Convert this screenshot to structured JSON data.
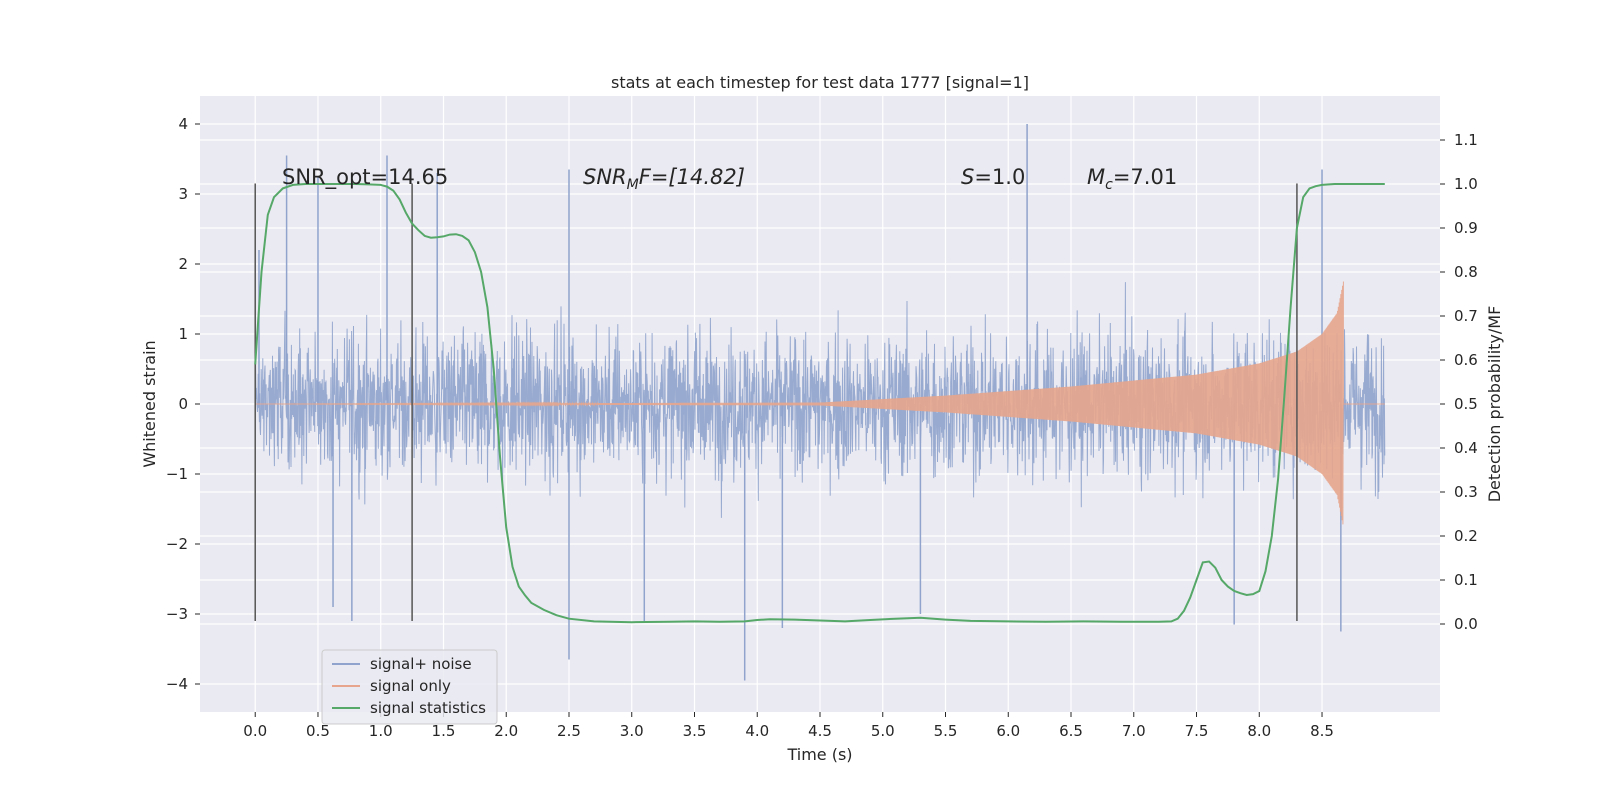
{
  "chart_data": {
    "type": "line",
    "title": "stats at each timestep for test data 1777 [signal=1]",
    "xlabel": "Time (s)",
    "ylabel": "Whitened strain",
    "ylabel_right": "Detection probability/MF",
    "xlim": [
      -0.44,
      9.44
    ],
    "ylim": [
      -4.4,
      4.4
    ],
    "ylim_right": [
      -0.2,
      1.2
    ],
    "x_ticks": [
      0.0,
      0.5,
      1.0,
      1.5,
      2.0,
      2.5,
      3.0,
      3.5,
      4.0,
      4.5,
      5.0,
      5.5,
      6.0,
      6.5,
      7.0,
      7.5,
      8.0,
      8.5
    ],
    "x_tick_labels": [
      "0.0",
      "0.5",
      "1.0",
      "1.5",
      "2.0",
      "2.5",
      "3.0",
      "3.5",
      "4.0",
      "4.5",
      "5.0",
      "5.5",
      "6.0",
      "6.5",
      "7.0",
      "7.5",
      "8.0",
      "8.5"
    ],
    "y_ticks": [
      4,
      3,
      2,
      1,
      0,
      -1,
      -2,
      -3,
      -4
    ],
    "y_tick_labels": [
      "4",
      "3",
      "2",
      "1",
      "0",
      "−1",
      "−2",
      "−3",
      "−4"
    ],
    "y_ticks_right": [
      1.1,
      1.0,
      0.9,
      0.8,
      0.7,
      0.6,
      0.5,
      0.4,
      0.3,
      0.2,
      0.1,
      0.0
    ],
    "y_tick_labels_right": [
      "1.1",
      "1.0",
      "0.9",
      "0.8",
      "0.7",
      "0.6",
      "0.5",
      "0.4",
      "0.3",
      "0.2",
      "0.1",
      "0.0"
    ],
    "grid": true,
    "legend_position": "lower-left",
    "series": [
      {
        "name": "signal+ noise",
        "axis": "left",
        "color": "#8fa3cc",
        "description_range_x": [
          0.0,
          9.0
        ],
        "peaks": [
          {
            "x": 0.03,
            "y": 2.2
          },
          {
            "x": 0.25,
            "y": 3.55
          },
          {
            "x": 0.5,
            "y": 3.25
          },
          {
            "x": 0.62,
            "y": -2.9
          },
          {
            "x": 0.77,
            "y": -3.1
          },
          {
            "x": 1.05,
            "y": 3.55
          },
          {
            "x": 1.45,
            "y": 3.3
          },
          {
            "x": 2.5,
            "y": 3.35
          },
          {
            "x": 2.5,
            "y": -3.65
          },
          {
            "x": 3.1,
            "y": -3.1
          },
          {
            "x": 3.9,
            "y": -3.95
          },
          {
            "x": 4.2,
            "y": -3.2
          },
          {
            "x": 5.3,
            "y": -3.0
          },
          {
            "x": 6.15,
            "y": 4.0
          },
          {
            "x": 7.8,
            "y": -3.15
          },
          {
            "x": 8.5,
            "y": 3.35
          },
          {
            "x": 8.65,
            "y": -3.25
          }
        ]
      },
      {
        "name": "signal only",
        "axis": "left",
        "color": "#e6a58c",
        "envelope": {
          "x": [
            0.0,
            4.5,
            5.5,
            6.5,
            7.5,
            8.0,
            8.3,
            8.5,
            8.62,
            8.67
          ],
          "amplitude": [
            0.0,
            0.02,
            0.12,
            0.25,
            0.42,
            0.58,
            0.75,
            1.0,
            1.3,
            1.75
          ]
        },
        "ends_at": 8.67
      },
      {
        "name": "signal statistics",
        "axis": "right",
        "color": "#55a868",
        "x": [
          0.0,
          0.05,
          0.1,
          0.15,
          0.22,
          0.3,
          0.4,
          0.5,
          0.6,
          0.7,
          0.8,
          0.9,
          1.0,
          1.05,
          1.1,
          1.15,
          1.2,
          1.25,
          1.3,
          1.35,
          1.4,
          1.45,
          1.5,
          1.55,
          1.6,
          1.65,
          1.7,
          1.75,
          1.8,
          1.85,
          1.9,
          1.95,
          2.0,
          2.05,
          2.1,
          2.15,
          2.2,
          2.3,
          2.4,
          2.5,
          2.7,
          3.0,
          3.3,
          3.5,
          3.7,
          3.9,
          4.0,
          4.1,
          4.3,
          4.5,
          4.7,
          4.9,
          5.1,
          5.3,
          5.5,
          5.7,
          6.0,
          6.3,
          6.6,
          6.9,
          7.1,
          7.2,
          7.3,
          7.35,
          7.4,
          7.45,
          7.5,
          7.55,
          7.6,
          7.65,
          7.7,
          7.75,
          7.8,
          7.85,
          7.9,
          7.95,
          8.0,
          8.05,
          8.1,
          8.15,
          8.2,
          8.25,
          8.3,
          8.35,
          8.4,
          8.45,
          8.5,
          8.6,
          8.8,
          9.0
        ],
        "values": [
          0.59,
          0.8,
          0.93,
          0.97,
          0.99,
          0.998,
          1.0,
          1.0,
          1.0,
          1.0,
          1.0,
          0.999,
          0.998,
          0.994,
          0.985,
          0.965,
          0.935,
          0.91,
          0.895,
          0.882,
          0.878,
          0.879,
          0.881,
          0.885,
          0.886,
          0.882,
          0.872,
          0.845,
          0.8,
          0.72,
          0.58,
          0.38,
          0.22,
          0.13,
          0.085,
          0.065,
          0.048,
          0.032,
          0.02,
          0.012,
          0.006,
          0.004,
          0.005,
          0.006,
          0.005,
          0.006,
          0.009,
          0.011,
          0.01,
          0.008,
          0.006,
          0.009,
          0.012,
          0.014,
          0.01,
          0.007,
          0.006,
          0.005,
          0.006,
          0.005,
          0.005,
          0.005,
          0.006,
          0.012,
          0.03,
          0.06,
          0.1,
          0.14,
          0.142,
          0.128,
          0.1,
          0.085,
          0.075,
          0.07,
          0.066,
          0.068,
          0.075,
          0.12,
          0.2,
          0.33,
          0.52,
          0.72,
          0.9,
          0.97,
          0.99,
          0.995,
          0.998,
          1.0,
          1.0,
          1.0
        ]
      }
    ],
    "vertical_markers": [
      0.0,
      1.25,
      8.3
    ],
    "annotations": [
      {
        "x": 0.2,
        "y": 3.2,
        "text": "SNR_opt=14.65"
      },
      {
        "x": 2.6,
        "y": 3.2,
        "text": "SNR_MF=[14.82]"
      },
      {
        "x": 5.6,
        "y": 3.2,
        "text": "S=1.0"
      },
      {
        "x": 6.6,
        "y": 3.2,
        "text": "M_c=7.01"
      }
    ]
  },
  "annotation_text": {
    "snr_opt": "SNR_opt=14.65",
    "snr_mf_main": "SNR",
    "snr_mf_sub": "M",
    "snr_mf_rest": "F=[14.82]",
    "s_var": "S",
    "s_rest": "=1.0",
    "mc_var": "M",
    "mc_sub": "c",
    "mc_rest": "=7.01"
  },
  "legend": {
    "items": [
      {
        "label": "signal+ noise",
        "color": "#8fa3cc"
      },
      {
        "label": "signal only",
        "color": "#e6a58c"
      },
      {
        "label": "signal statistics",
        "color": "#55a868"
      }
    ]
  },
  "colors": {
    "plot_background": "#eaeaf2",
    "grid": "#ffffff",
    "marker_lines": "#555555"
  }
}
